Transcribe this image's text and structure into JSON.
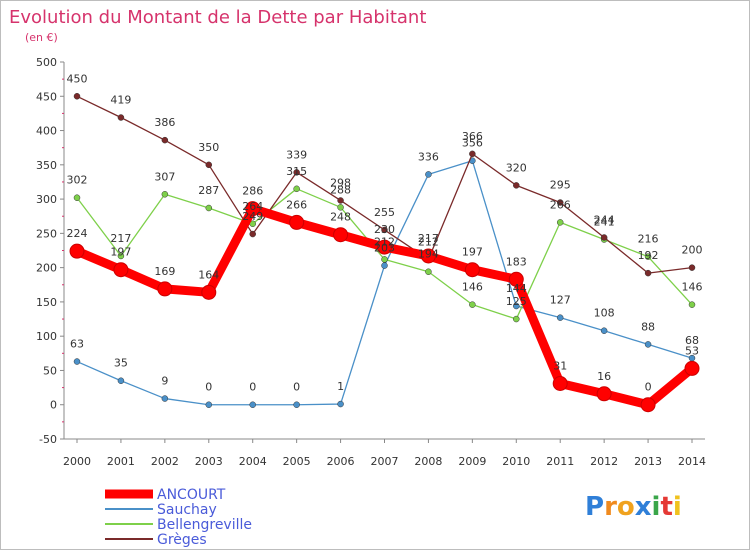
{
  "title": "Evolution du Montant de la Dette par Habitant",
  "subtitle": "(en €)",
  "brand": {
    "letters": [
      "P",
      "r",
      "o",
      "x",
      "i",
      "t",
      "i"
    ],
    "colors": [
      "#2f7fd8",
      "#f08a1e",
      "#f0a21e",
      "#2f7fd8",
      "#3aa64a",
      "#e53935",
      "#f0c21e"
    ]
  },
  "chart_data": {
    "type": "line",
    "x": [
      "2000",
      "2001",
      "2002",
      "2003",
      "2004",
      "2005",
      "2006",
      "2007",
      "2008",
      "2009",
      "2010",
      "2011",
      "2012",
      "2013",
      "2014"
    ],
    "ylim": [
      -50,
      500
    ],
    "yticks": [
      "-50",
      "0",
      "50",
      "100",
      "150",
      "200",
      "250",
      "300",
      "350",
      "400",
      "450",
      "500"
    ],
    "grid": false,
    "legend_position": "bottom-left",
    "series": [
      {
        "name": "ANCOURT",
        "color": "#ff0000",
        "values": [
          224,
          197,
          169,
          164,
          286,
          266,
          248,
          230,
          217,
          197,
          183,
          31,
          16,
          0,
          53
        ],
        "labels": [
          "224",
          "197",
          "169",
          "164",
          "286",
          "266",
          "248",
          "230",
          "217",
          "197",
          "183",
          "31",
          "16",
          "0",
          "53"
        ]
      },
      {
        "name": "Sauchay",
        "color": "#4a90c8",
        "values": [
          63,
          35,
          9,
          0,
          0,
          0,
          1,
          203,
          336,
          356,
          144,
          127,
          108,
          88,
          68
        ],
        "labels": [
          "63",
          "35",
          "9",
          "0",
          "0",
          "0",
          "1",
          "203",
          "336",
          "356",
          "144",
          "127",
          "108",
          "88",
          "68"
        ]
      },
      {
        "name": "Bellengreville",
        "color": "#7ed04a",
        "values": [
          302,
          217,
          307,
          287,
          264,
          315,
          288,
          212,
          194,
          146,
          125,
          266,
          241,
          216,
          146
        ],
        "labels": [
          "302",
          "217",
          "307",
          "287",
          "264",
          "315",
          "288",
          "212",
          "194",
          "146",
          "125",
          "266",
          "241",
          "216",
          "146"
        ]
      },
      {
        "name": "Grèges",
        "color": "#7a2a2a",
        "values": [
          450,
          419,
          386,
          350,
          249,
          339,
          298,
          255,
          212,
          366,
          320,
          295,
          244,
          192,
          200
        ],
        "labels": [
          "450",
          "419",
          "386",
          "350",
          "249",
          "339",
          "298",
          "255",
          "212",
          "366",
          "320",
          "295",
          "244",
          "192",
          "200"
        ]
      }
    ]
  }
}
